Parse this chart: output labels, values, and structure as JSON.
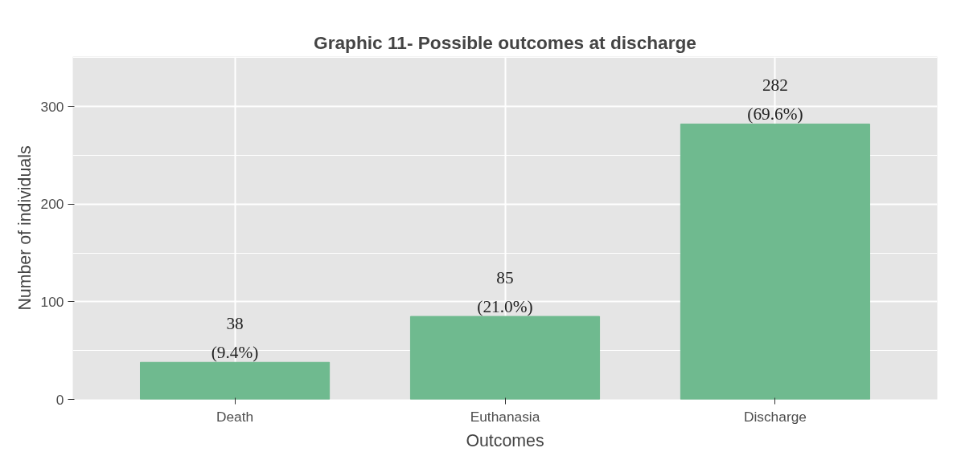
{
  "chart_data": {
    "type": "bar",
    "title": "Graphic 11- Possible outcomes at discharge",
    "xlabel": "Outcomes",
    "ylabel": "Number of individuals",
    "categories": [
      "Death",
      "Euthanasia",
      "Discharge"
    ],
    "values": [
      38,
      85,
      282
    ],
    "color": "#6fba8f",
    "value_labels": [
      "38\n(9.4%)",
      "85\n(21.0%)",
      "282\n(69.6%)"
    ],
    "ylim": [
      0,
      351
    ],
    "yticks": [
      0,
      100,
      200,
      300
    ],
    "grid": true
  }
}
